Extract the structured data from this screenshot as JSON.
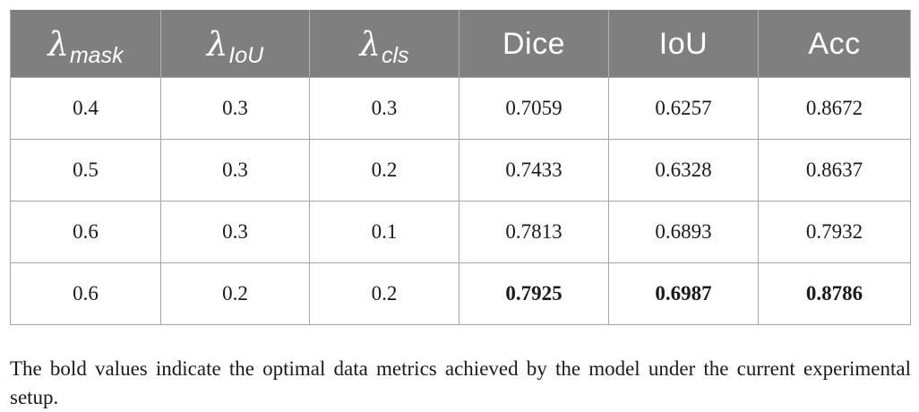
{
  "table": {
    "headers": [
      {
        "symbol": "λ",
        "sub": "mask"
      },
      {
        "symbol": "λ",
        "sub": "IoU"
      },
      {
        "symbol": "λ",
        "sub": "cls"
      },
      {
        "text": "Dice"
      },
      {
        "text": "IoU"
      },
      {
        "text": "Acc"
      }
    ],
    "rows": [
      [
        "0.4",
        "0.3",
        "0.3",
        "0.7059",
        "0.6257",
        "0.8672"
      ],
      [
        "0.5",
        "0.3",
        "0.2",
        "0.7433",
        "0.6328",
        "0.8637"
      ],
      [
        "0.6",
        "0.3",
        "0.1",
        "0.7813",
        "0.6893",
        "0.7932"
      ],
      [
        "0.6",
        "0.2",
        "0.2",
        "0.7925",
        "0.6987",
        "0.8786"
      ]
    ],
    "bold_cells": [
      [
        3,
        3
      ],
      [
        3,
        4
      ],
      [
        3,
        5
      ]
    ]
  },
  "footnote": "The bold values indicate the optimal data metrics achieved by the model under the current experimental setup."
}
